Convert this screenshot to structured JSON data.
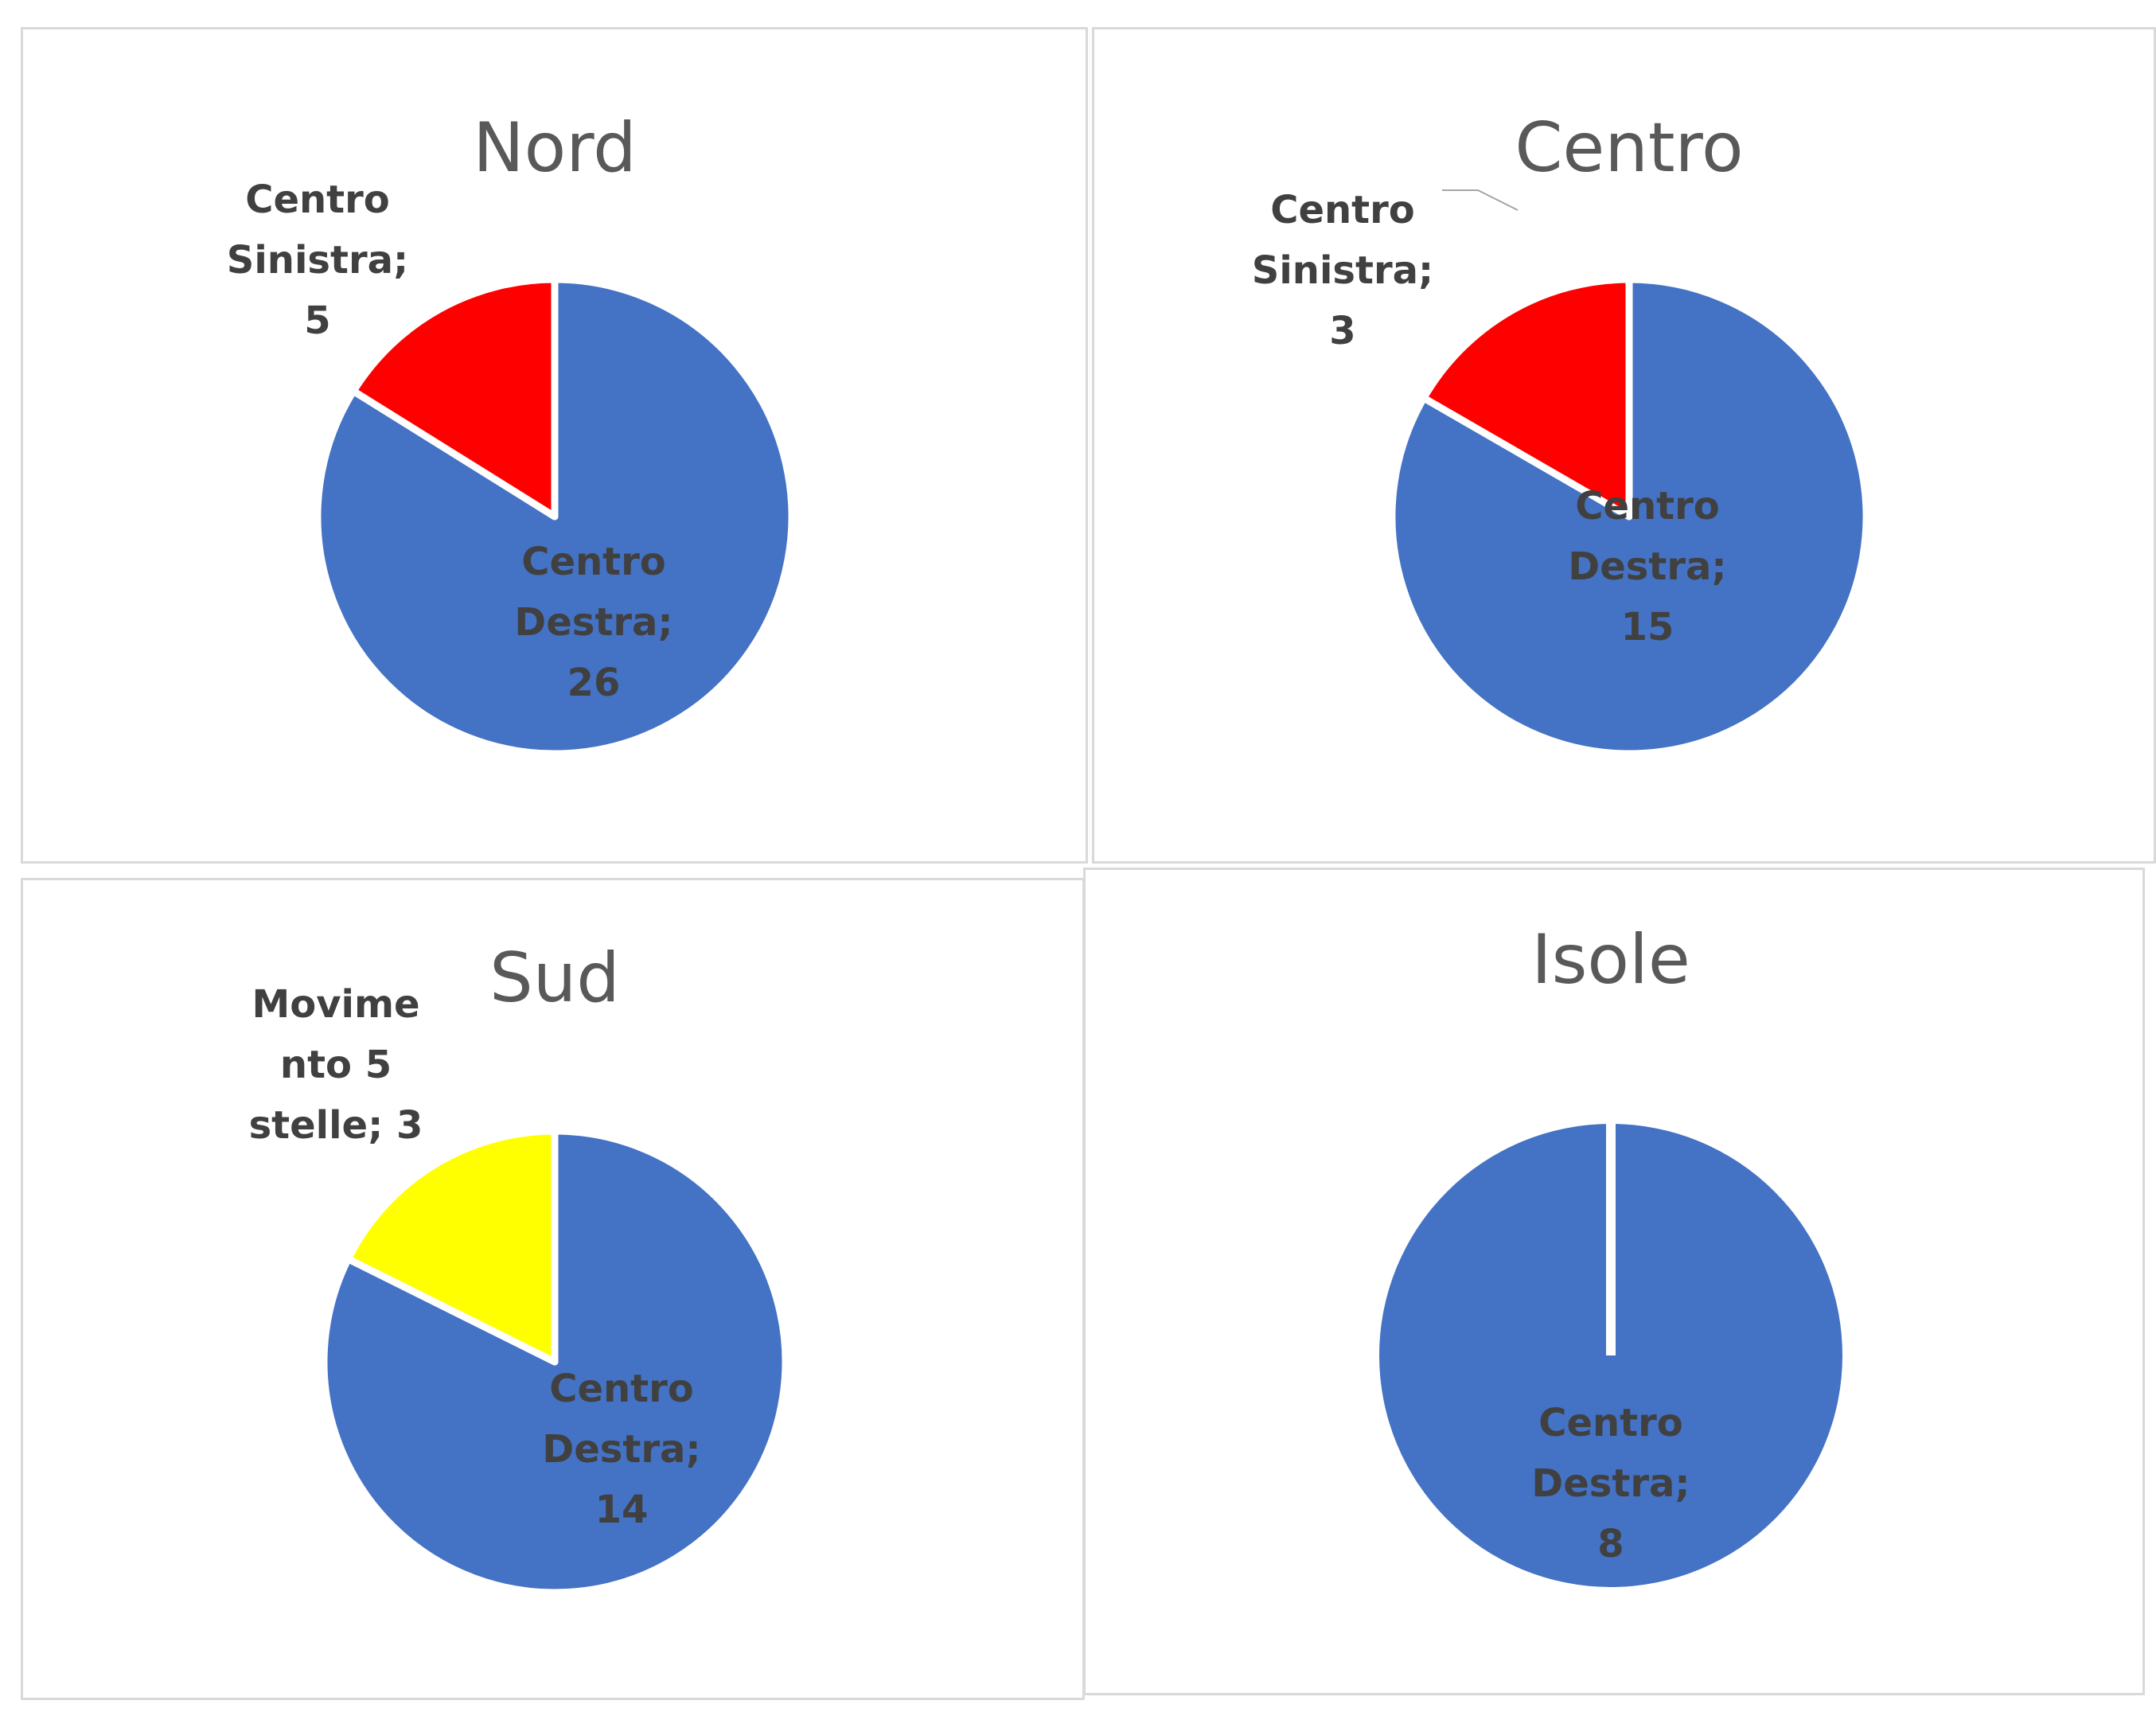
{
  "chart_data": [
    {
      "type": "pie",
      "title": "Nord",
      "slices": [
        {
          "label": "Centro Destra",
          "value": 26,
          "color": "#4472C4",
          "label_lines": [
            "Centro",
            "Destra;",
            "26"
          ]
        },
        {
          "label": "Centro Sinistra",
          "value": 5,
          "color": "#FF0000",
          "label_lines": [
            "Centro",
            "Sinistra;",
            "5"
          ]
        }
      ]
    },
    {
      "type": "pie",
      "title": "Centro",
      "slices": [
        {
          "label": "Centro Destra",
          "value": 15,
          "color": "#4472C4",
          "label_lines": [
            "Centro",
            "Destra;",
            "15"
          ]
        },
        {
          "label": "Centro Sinistra",
          "value": 3,
          "color": "#FF0000",
          "label_lines": [
            "Centro",
            "Sinistra;",
            "3"
          ]
        }
      ]
    },
    {
      "type": "pie",
      "title": "Sud",
      "slices": [
        {
          "label": "Centro Destra",
          "value": 14,
          "color": "#4472C4",
          "label_lines": [
            "Centro",
            "Destra;",
            "14"
          ]
        },
        {
          "label": "Movimento 5 stelle",
          "value": 3,
          "color": "#FFFF00",
          "label_lines": [
            "Movime",
            "nto 5",
            "stelle; 3"
          ]
        }
      ]
    },
    {
      "type": "pie",
      "title": "Isole",
      "slices": [
        {
          "label": "Centro Destra",
          "value": 8,
          "color": "#4472C4",
          "label_lines": [
            "Centro",
            "Destra;",
            "8"
          ]
        }
      ]
    }
  ]
}
